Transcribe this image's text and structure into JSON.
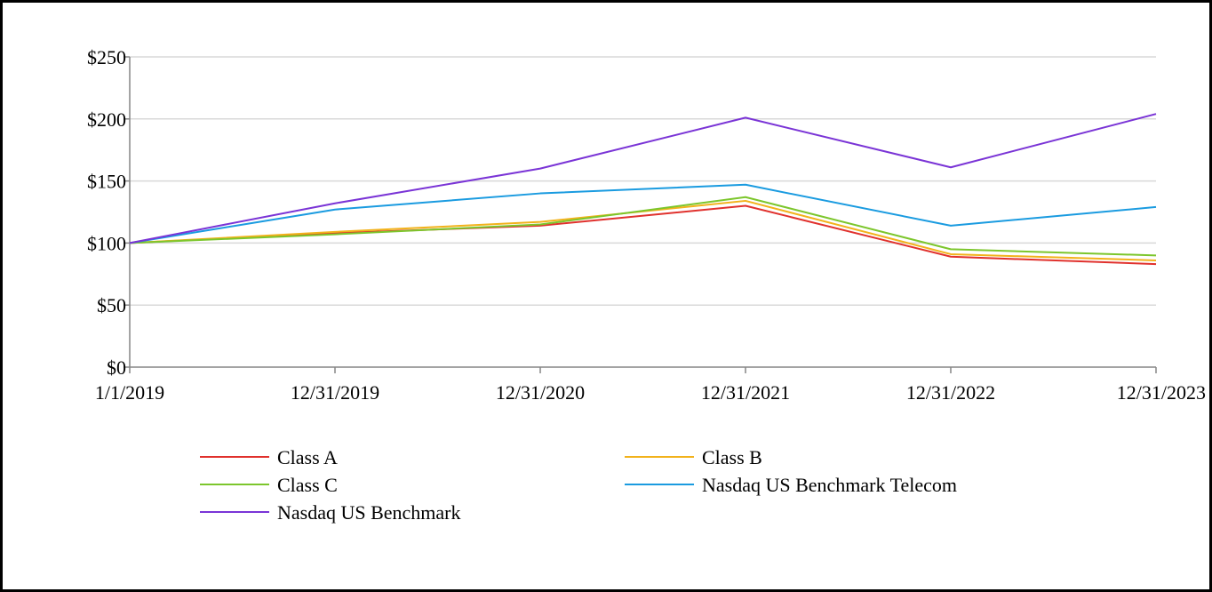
{
  "chart_data": {
    "type": "line",
    "title": "",
    "xlabel": "",
    "ylabel": "",
    "categories": [
      "1/1/2019",
      "12/31/2019",
      "12/31/2020",
      "12/31/2021",
      "12/31/2022",
      "12/31/2023"
    ],
    "y_ticks": [
      "$0",
      "$50",
      "$100",
      "$150",
      "$200",
      "$250"
    ],
    "ylim": [
      0,
      250
    ],
    "grid": true,
    "legend_position": "bottom",
    "series": [
      {
        "name": "Class A",
        "color": "#e0312d",
        "values": [
          100,
          108,
          114,
          130,
          89,
          83
        ]
      },
      {
        "name": "Class B",
        "color": "#f2b21b",
        "values": [
          100,
          109,
          117,
          134,
          91,
          86
        ]
      },
      {
        "name": "Class C",
        "color": "#7cc62c",
        "values": [
          100,
          107,
          115,
          137,
          95,
          90
        ]
      },
      {
        "name": "Nasdaq US Benchmark Telecom",
        "color": "#1a9be0",
        "values": [
          100,
          127,
          140,
          147,
          114,
          129
        ]
      },
      {
        "name": "Nasdaq US Benchmark",
        "color": "#7a34d6",
        "values": [
          100,
          132,
          160,
          201,
          161,
          204
        ]
      }
    ]
  }
}
